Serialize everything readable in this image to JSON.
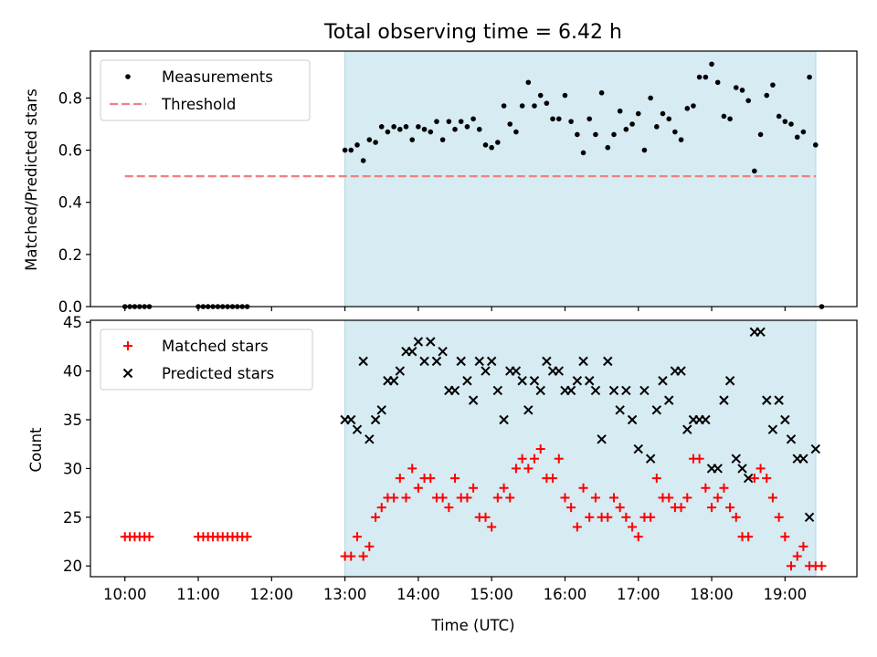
{
  "title": "Total observing time = 6.42 h",
  "colors": {
    "shade": "#add8e6",
    "threshold": "#f08080",
    "measurement": "#000000",
    "matched": "#ff0000",
    "predicted": "#000000"
  },
  "xaxis": {
    "label": "Time (UTC)",
    "ticks": [
      10,
      11,
      12,
      13,
      14,
      15,
      16,
      17,
      18,
      19
    ],
    "tick_labels": [
      "10:00",
      "11:00",
      "12:00",
      "13:00",
      "14:00",
      "15:00",
      "16:00",
      "17:00",
      "18:00",
      "19:00"
    ]
  },
  "chart_data": [
    {
      "type": "scatter",
      "ylabel": "Matched/Predicted stars",
      "xlim": [
        9.53,
        19.98
      ],
      "ylim": [
        0,
        0.98
      ],
      "yticks": [
        0.0,
        0.2,
        0.4,
        0.6,
        0.8
      ],
      "ytick_labels": [
        "0.0",
        "0.2",
        "0.4",
        "0.6",
        "0.8"
      ],
      "shaded_region": [
        13.0,
        19.42
      ],
      "threshold": {
        "name": "Threshold",
        "y": 0.5,
        "x_range": [
          10.0,
          19.42
        ]
      },
      "legend": {
        "placement": "upper left",
        "entries": [
          "Measurements",
          "Threshold"
        ]
      },
      "series": [
        {
          "name": "Measurements",
          "x": [
            10.0,
            10.067,
            10.133,
            10.2,
            10.267,
            10.333,
            11.0,
            11.067,
            11.133,
            11.2,
            11.267,
            11.333,
            11.4,
            11.467,
            11.533,
            11.6,
            11.667,
            13.0,
            13.083,
            13.167,
            13.25,
            13.333,
            13.417,
            13.5,
            13.583,
            13.667,
            13.75,
            13.833,
            13.917,
            14.0,
            14.083,
            14.167,
            14.25,
            14.333,
            14.417,
            14.5,
            14.583,
            14.667,
            14.75,
            14.833,
            14.917,
            15.0,
            15.083,
            15.167,
            15.25,
            15.333,
            15.417,
            15.5,
            15.583,
            15.667,
            15.75,
            15.833,
            15.917,
            16.0,
            16.083,
            16.167,
            16.25,
            16.333,
            16.417,
            16.5,
            16.583,
            16.667,
            16.75,
            16.833,
            16.917,
            17.0,
            17.083,
            17.167,
            17.25,
            17.333,
            17.417,
            17.5,
            17.583,
            17.667,
            17.75,
            17.833,
            17.917,
            18.0,
            18.083,
            18.167,
            18.25,
            18.333,
            18.417,
            18.5,
            18.583,
            18.667,
            18.75,
            18.833,
            18.917,
            19.0,
            19.083,
            19.167,
            19.25,
            19.333,
            19.417,
            19.5
          ],
          "y": [
            0,
            0,
            0,
            0,
            0,
            0,
            0,
            0,
            0,
            0,
            0,
            0,
            0,
            0,
            0,
            0,
            0,
            0.6,
            0.6,
            0.62,
            0.56,
            0.64,
            0.63,
            0.69,
            0.67,
            0.69,
            0.68,
            0.69,
            0.64,
            0.69,
            0.68,
            0.67,
            0.71,
            0.64,
            0.71,
            0.68,
            0.71,
            0.69,
            0.72,
            0.68,
            0.62,
            0.61,
            0.63,
            0.77,
            0.7,
            0.67,
            0.77,
            0.86,
            0.77,
            0.81,
            0.78,
            0.72,
            0.72,
            0.81,
            0.71,
            0.66,
            0.59,
            0.72,
            0.66,
            0.82,
            0.61,
            0.66,
            0.75,
            0.68,
            0.7,
            0.74,
            0.6,
            0.8,
            0.69,
            0.74,
            0.72,
            0.67,
            0.64,
            0.76,
            0.77,
            0.88,
            0.88,
            0.93,
            0.86,
            0.73,
            0.72,
            0.84,
            0.83,
            0.79,
            0.52,
            0.66,
            0.81,
            0.85,
            0.73,
            0.71,
            0.7,
            0.65,
            0.67,
            0.88,
            0.62,
            0
          ]
        }
      ]
    },
    {
      "type": "scatter",
      "ylabel": "Count",
      "xlabel": "Time (UTC)",
      "xlim": [
        9.53,
        19.98
      ],
      "ylim": [
        18.9,
        45.2
      ],
      "yticks": [
        20,
        25,
        30,
        35,
        40,
        45
      ],
      "ytick_labels": [
        "20",
        "25",
        "30",
        "35",
        "40",
        "45"
      ],
      "shaded_region": [
        13.0,
        19.42
      ],
      "legend": {
        "placement": "upper left",
        "entries": [
          "Matched stars",
          "Predicted stars"
        ]
      },
      "series": [
        {
          "name": "Matched stars",
          "marker": "plus",
          "x": [
            10.0,
            10.067,
            10.133,
            10.2,
            10.267,
            10.333,
            11.0,
            11.067,
            11.133,
            11.2,
            11.267,
            11.333,
            11.4,
            11.467,
            11.533,
            11.6,
            11.667,
            13.0,
            13.083,
            13.167,
            13.25,
            13.333,
            13.417,
            13.5,
            13.583,
            13.667,
            13.75,
            13.833,
            13.917,
            14.0,
            14.083,
            14.167,
            14.25,
            14.333,
            14.417,
            14.5,
            14.583,
            14.667,
            14.75,
            14.833,
            14.917,
            15.0,
            15.083,
            15.167,
            15.25,
            15.333,
            15.417,
            15.5,
            15.583,
            15.667,
            15.75,
            15.833,
            15.917,
            16.0,
            16.083,
            16.167,
            16.25,
            16.333,
            16.417,
            16.5,
            16.583,
            16.667,
            16.75,
            16.833,
            16.917,
            17.0,
            17.083,
            17.167,
            17.25,
            17.333,
            17.417,
            17.5,
            17.583,
            17.667,
            17.75,
            17.833,
            17.917,
            18.0,
            18.083,
            18.167,
            18.25,
            18.333,
            18.417,
            18.5,
            18.583,
            18.667,
            18.75,
            18.833,
            18.917,
            19.0,
            19.083,
            19.167,
            19.25,
            19.333,
            19.417,
            19.5
          ],
          "y": [
            23,
            23,
            23,
            23,
            23,
            23,
            23,
            23,
            23,
            23,
            23,
            23,
            23,
            23,
            23,
            23,
            23,
            21,
            21,
            23,
            21,
            22,
            25,
            26,
            27,
            27,
            29,
            27,
            30,
            28,
            29,
            29,
            27,
            27,
            26,
            29,
            27,
            27,
            28,
            25,
            25,
            24,
            27,
            28,
            27,
            30,
            31,
            30,
            31,
            32,
            29,
            29,
            31,
            27,
            26,
            24,
            28,
            25,
            27,
            25,
            25,
            27,
            26,
            25,
            24,
            23,
            25,
            25,
            29,
            27,
            27,
            26,
            26,
            27,
            31,
            31,
            28,
            26,
            27,
            28,
            26,
            25,
            23,
            23,
            29,
            30,
            29,
            27,
            25,
            23,
            20,
            21,
            22,
            20,
            20,
            20
          ]
        },
        {
          "name": "Predicted stars",
          "marker": "x",
          "x": [
            13.0,
            13.083,
            13.167,
            13.25,
            13.333,
            13.417,
            13.5,
            13.583,
            13.667,
            13.75,
            13.833,
            13.917,
            14.0,
            14.083,
            14.167,
            14.25,
            14.333,
            14.417,
            14.5,
            14.583,
            14.667,
            14.75,
            14.833,
            14.917,
            15.0,
            15.083,
            15.167,
            15.25,
            15.333,
            15.417,
            15.5,
            15.583,
            15.667,
            15.75,
            15.833,
            15.917,
            16.0,
            16.083,
            16.167,
            16.25,
            16.333,
            16.417,
            16.5,
            16.583,
            16.667,
            16.75,
            16.833,
            16.917,
            17.0,
            17.083,
            17.167,
            17.25,
            17.333,
            17.417,
            17.5,
            17.583,
            17.667,
            17.75,
            17.833,
            17.917,
            18.0,
            18.083,
            18.167,
            18.25,
            18.333,
            18.417,
            18.5,
            18.583,
            18.667,
            18.75,
            18.833,
            18.917,
            19.0,
            19.083,
            19.167,
            19.25,
            19.333,
            19.417
          ],
          "y": [
            35,
            35,
            34,
            41,
            33,
            35,
            36,
            39,
            39,
            40,
            42,
            42,
            43,
            41,
            43,
            41,
            42,
            38,
            38,
            41,
            39,
            37,
            41,
            40,
            41,
            38,
            35,
            40,
            40,
            39,
            36,
            39,
            38,
            41,
            40,
            40,
            38,
            38,
            39,
            41,
            39,
            38,
            33,
            41,
            38,
            36,
            38,
            35,
            32,
            38,
            31,
            36,
            39,
            37,
            40,
            40,
            34,
            35,
            35,
            35,
            30,
            30,
            37,
            39,
            31,
            30,
            29,
            44,
            44,
            37,
            34,
            37,
            35,
            33,
            31,
            31,
            25,
            32
          ]
        }
      ]
    }
  ]
}
